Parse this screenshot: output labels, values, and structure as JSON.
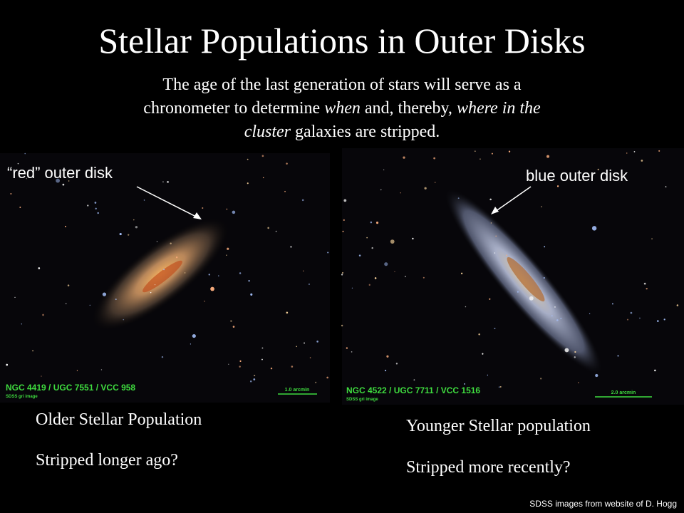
{
  "header": {
    "title": "Stellar Populations in Outer Disks",
    "subtitle": [
      "The age of the last generation of stars will serve as a",
      "chronometer to determine ",
      "when",
      " and, thereby, ",
      "where in the",
      "cluster",
      " galaxies are stripped."
    ]
  },
  "panels": [
    {
      "label": "“red” outer disk",
      "image_id": "NGC 4419 / UGC 7551 / VCC 958",
      "image_note": "SDSS gri image",
      "scale": "1.0 arcmin",
      "captions": [
        "Older Stellar Population",
        "Stripped longer ago?"
      ]
    },
    {
      "label": "blue outer disk",
      "image_id": "NGC 4522 / UGC 7711 / VCC 1516",
      "image_note": "SDSS gri image",
      "scale": "2.0 arcmin",
      "captions": [
        "Younger Stellar population",
        "Stripped more recently?"
      ]
    }
  ],
  "footer": {
    "credit": "SDSS images from website of D. Hogg"
  }
}
